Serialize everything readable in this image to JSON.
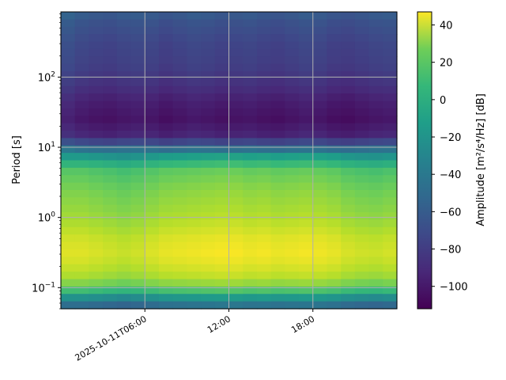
{
  "chart_data": {
    "type": "heatmap",
    "title": "",
    "xlabel": "",
    "ylabel": "Period [s]",
    "y_scale": "log",
    "ylim": [
      0.05,
      850
    ],
    "xlim": [
      "2025-10-11T00:00",
      "2025-10-12T00:00"
    ],
    "grid": true,
    "x_ticks": [
      {
        "value": "2025-10-11T06:00",
        "label": "2025-10-11T06:00"
      },
      {
        "value": "2025-10-11T12:00",
        "label": "12:00"
      },
      {
        "value": "2025-10-11T18:00",
        "label": "18:00"
      }
    ],
    "y_ticks": [
      {
        "value": 0.1,
        "label": "10",
        "exp": "−1"
      },
      {
        "value": 1,
        "label": "10",
        "exp": "0"
      },
      {
        "value": 10,
        "label": "10",
        "exp": "1"
      },
      {
        "value": 100,
        "label": "10",
        "exp": "2"
      }
    ],
    "colorbar": {
      "label": "Amplitude [m²/s⁴/Hz] [dB]",
      "colormap": "viridis",
      "range": [
        -112,
        47
      ],
      "ticks": [
        -100,
        -80,
        -60,
        -40,
        -20,
        0,
        20,
        40
      ],
      "tick_labels": [
        "−100",
        "−80",
        "−60",
        "−40",
        "−20",
        "0",
        "20",
        "40"
      ]
    },
    "time_columns": [
      "00:00",
      "01:00",
      "02:00",
      "03:00",
      "04:00",
      "05:00",
      "06:00",
      "07:00",
      "08:00",
      "09:00",
      "10:00",
      "11:00",
      "12:00",
      "13:00",
      "14:00",
      "15:00",
      "16:00",
      "17:00",
      "18:00",
      "19:00",
      "20:00",
      "21:00",
      "22:00",
      "23:00"
    ],
    "period_profile": [
      {
        "period": 0.05,
        "amplitude_db": -65
      },
      {
        "period": 0.06,
        "amplitude_db": -50
      },
      {
        "period": 0.07,
        "amplitude_db": -35
      },
      {
        "period": 0.085,
        "amplitude_db": -10
      },
      {
        "period": 0.11,
        "amplitude_db": 15
      },
      {
        "period": 0.15,
        "amplitude_db": 28
      },
      {
        "period": 0.22,
        "amplitude_db": 36
      },
      {
        "period": 0.32,
        "amplitude_db": 40
      },
      {
        "period": 0.5,
        "amplitude_db": 36
      },
      {
        "period": 0.8,
        "amplitude_db": 28
      },
      {
        "period": 1.3,
        "amplitude_db": 22
      },
      {
        "period": 2.5,
        "amplitude_db": 15
      },
      {
        "period": 4.5,
        "amplitude_db": 5
      },
      {
        "period": 6.5,
        "amplitude_db": -15
      },
      {
        "period": 9,
        "amplitude_db": -45
      },
      {
        "period": 12,
        "amplitude_db": -75
      },
      {
        "period": 15,
        "amplitude_db": -92
      },
      {
        "period": 25,
        "amplitude_db": -100
      },
      {
        "period": 45,
        "amplitude_db": -95
      },
      {
        "period": 80,
        "amplitude_db": -85
      },
      {
        "period": 150,
        "amplitude_db": -78
      },
      {
        "period": 300,
        "amplitude_db": -75
      },
      {
        "period": 600,
        "amplitude_db": -68
      },
      {
        "period": 850,
        "amplitude_db": -62
      }
    ],
    "hourly_short_period_offset_db": [
      0,
      0,
      -2,
      -4,
      -6,
      -4,
      -1,
      2,
      3,
      4,
      5,
      6,
      6,
      4,
      5,
      3,
      4,
      5,
      4,
      2,
      -2,
      -4,
      -5,
      -3
    ],
    "hourly_long_period_offset_db": [
      2,
      -2,
      -4,
      -5,
      -3,
      -2,
      -3,
      -6,
      -4,
      -2,
      -3,
      -5,
      -4,
      -3,
      -5,
      -6,
      -4,
      -2,
      -3,
      -6,
      -7,
      -5,
      -3,
      -2
    ]
  }
}
